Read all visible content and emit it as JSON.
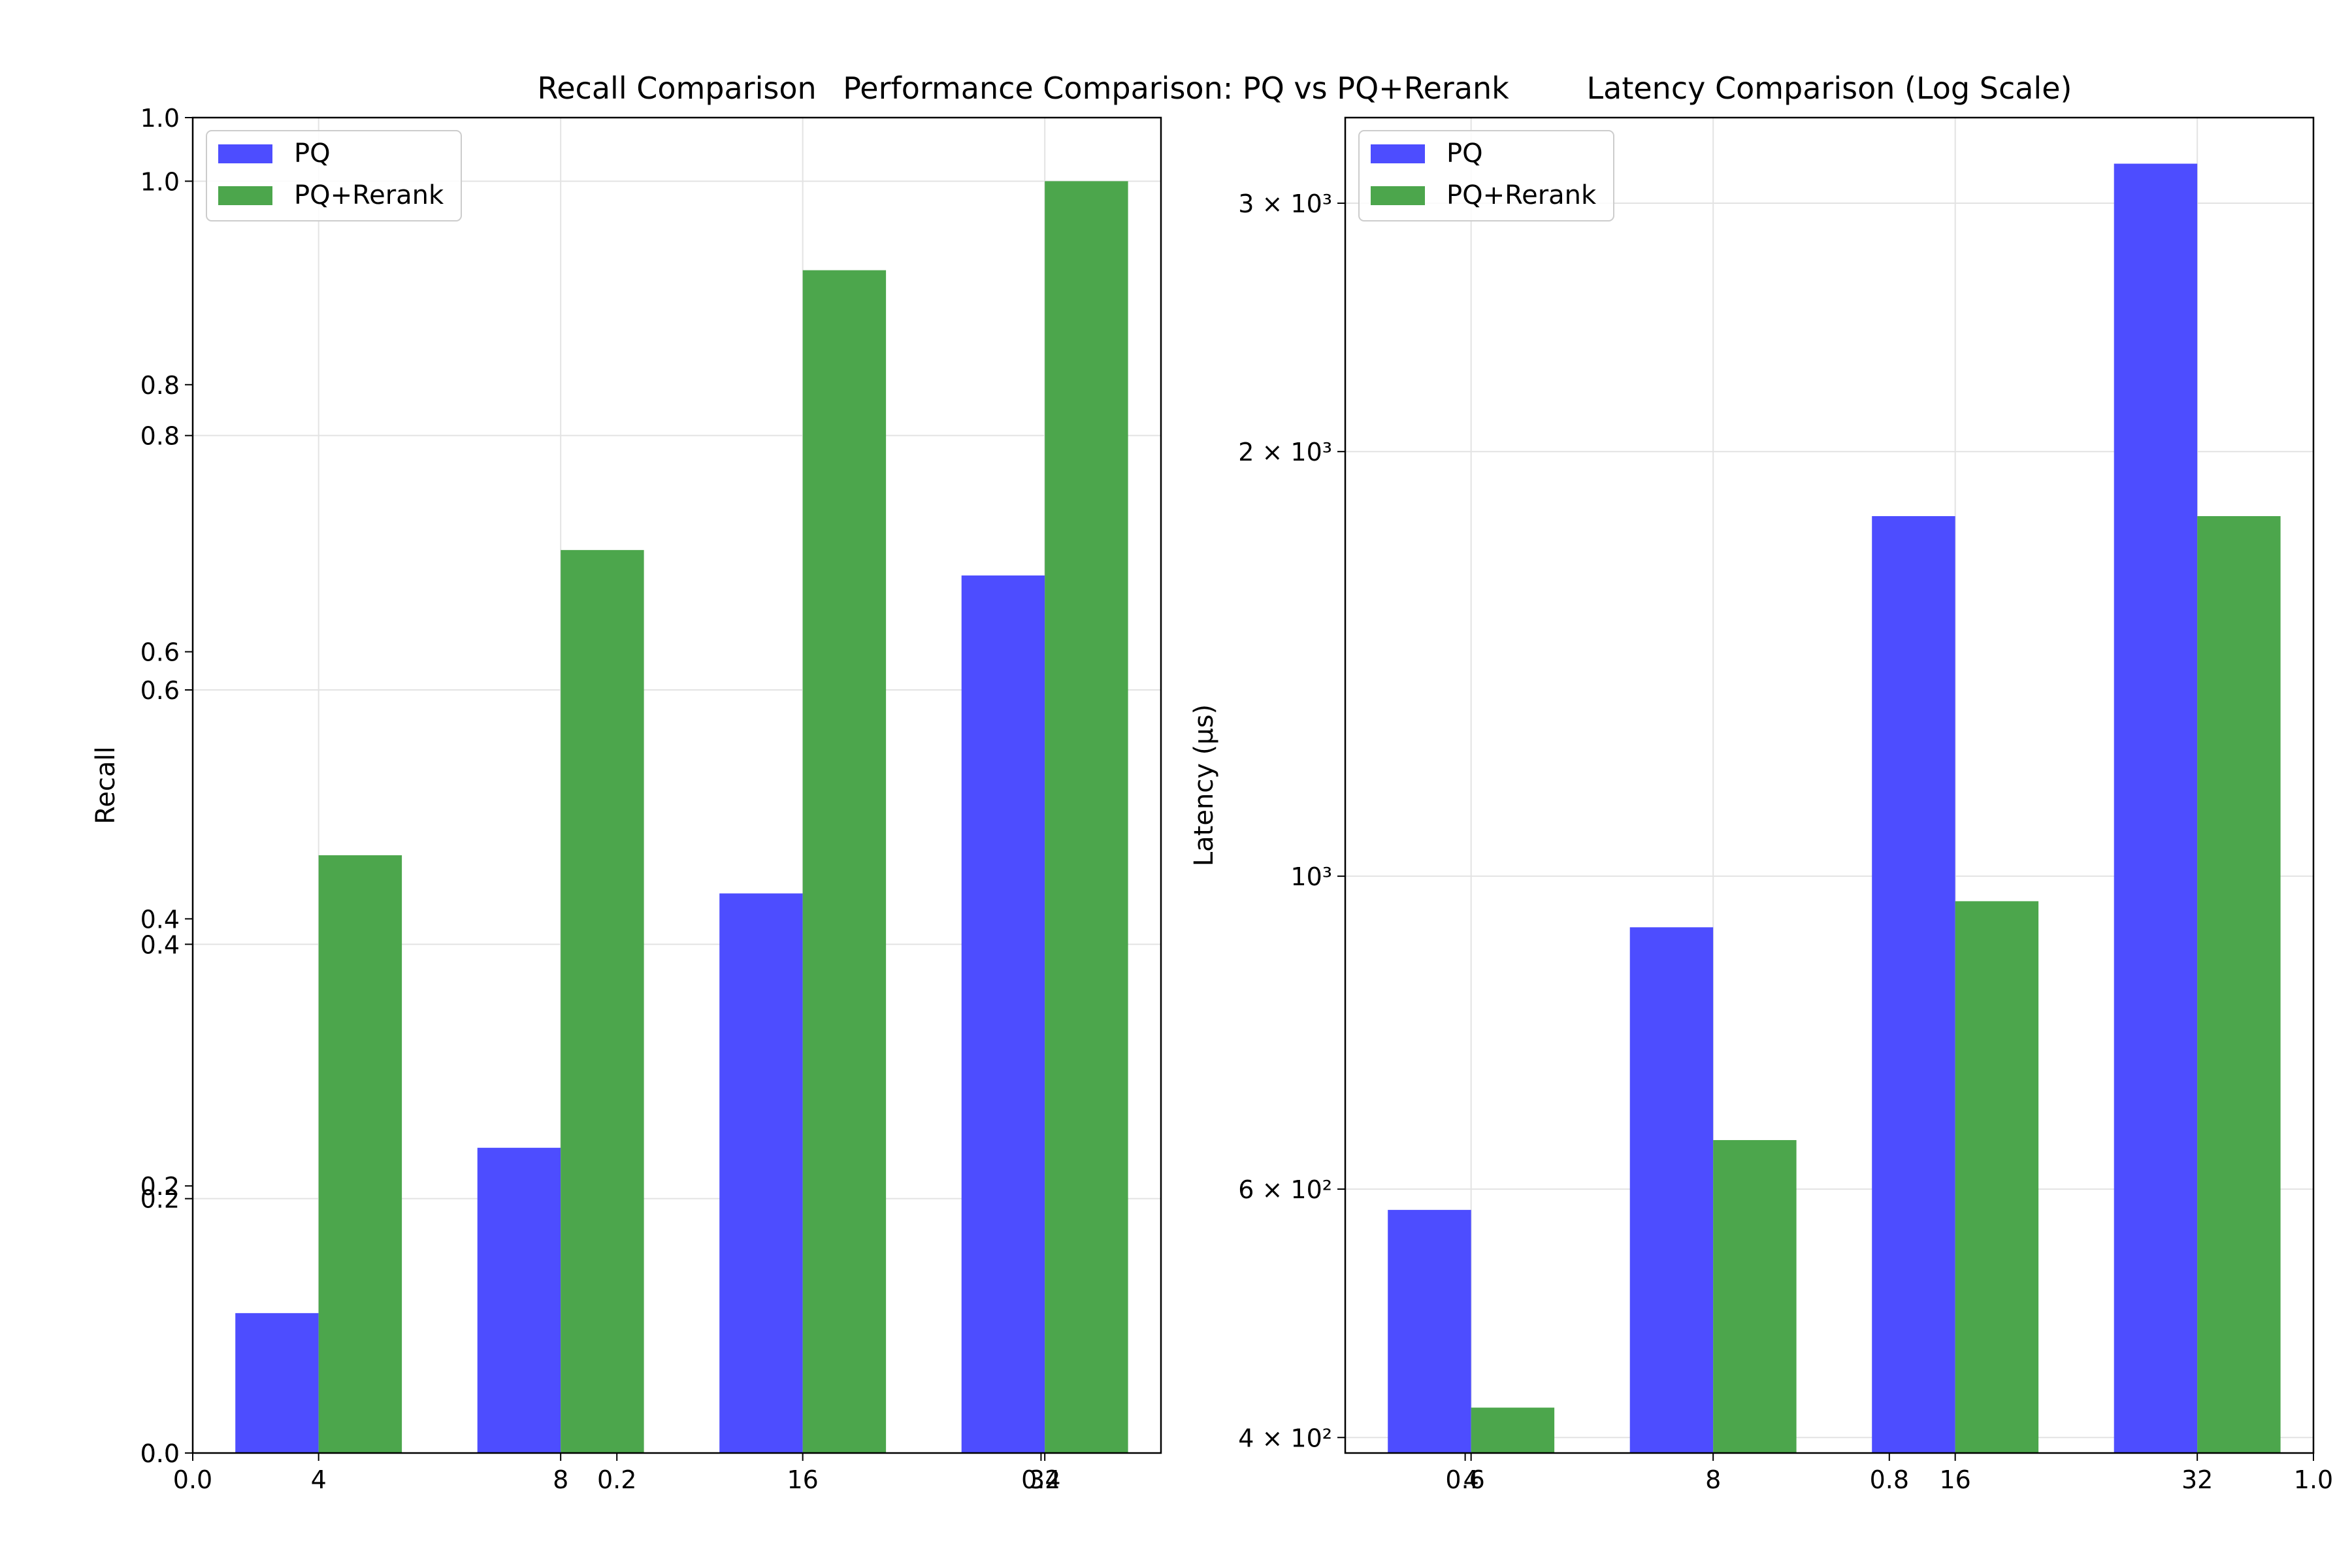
{
  "figure": {
    "suptitle": "Performance Comparison: PQ vs PQ+Rerank"
  },
  "colors": {
    "pq": "#4d4dff",
    "pq_rerank": "#4ca64c",
    "grid": "#e3e3e3"
  },
  "chart_data": [
    {
      "type": "bar",
      "title": "Recall Comparison",
      "xlabel": "",
      "ylabel": "Recall",
      "categories": [
        "4",
        "8",
        "16",
        "32"
      ],
      "series": [
        {
          "name": "PQ",
          "values": [
            0.11,
            0.24,
            0.44,
            0.69
          ]
        },
        {
          "name": "PQ+Rerank",
          "values": [
            0.47,
            0.71,
            0.93,
            1.0
          ]
        }
      ],
      "ylim": [
        0.0,
        1.05
      ],
      "yticks": [
        "0.0",
        "0.2",
        "0.4",
        "0.6",
        "0.8",
        "1.0"
      ],
      "overlay_yticks": [
        "0.0",
        "0.2",
        "0.4",
        "0.6",
        "0.8",
        "1.0"
      ],
      "overlay_xticks": [
        "0.0",
        "0.2",
        "0.4"
      ],
      "legend": "top-left",
      "grid": true
    },
    {
      "type": "bar",
      "title": "Latency Comparison (Log Scale)",
      "xlabel": "",
      "ylabel": "Latency (μs)",
      "yscale": "log",
      "categories": [
        "4",
        "8",
        "16",
        "32"
      ],
      "series": [
        {
          "name": "PQ",
          "values": [
            580,
            920,
            1800,
            3200
          ]
        },
        {
          "name": "PQ+Rerank",
          "values": [
            420,
            650,
            960,
            1800
          ]
        }
      ],
      "ylim": [
        390,
        3450
      ],
      "yticks": [
        "4 × 10²",
        "6 × 10²",
        "10³",
        "2 × 10³",
        "3 × 10³"
      ],
      "overlay_xticks": [
        "0.6",
        "0.8",
        "1.0"
      ],
      "legend": "top-left",
      "grid": true
    }
  ]
}
